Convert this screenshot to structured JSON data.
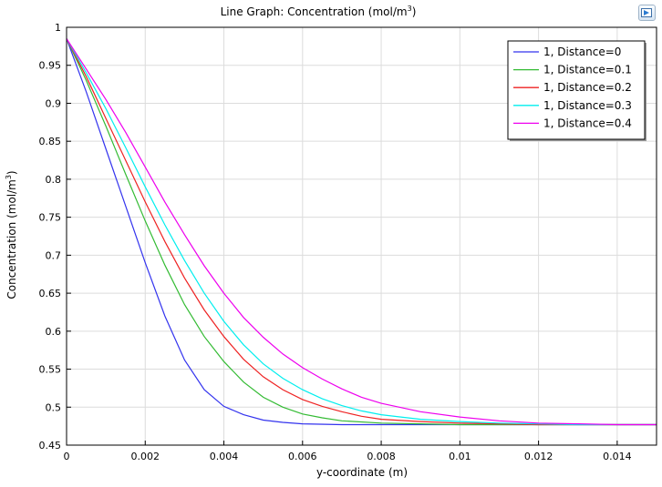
{
  "chart_data": {
    "type": "line",
    "title": "Line Graph: Concentration (mol/m",
    "title_superscript": "3",
    "title_suffix": ")",
    "xlabel": "y-coordinate (m)",
    "ylabel": "Concentration (mol/m",
    "ylabel_superscript": "3",
    "ylabel_suffix": ")",
    "xlim": [
      0,
      0.015
    ],
    "ylim": [
      0.45,
      1.0
    ],
    "xticks": [
      "0",
      "0.002",
      "0.004",
      "0.006",
      "0.008",
      "0.01",
      "0.012",
      "0.014"
    ],
    "xtick_values": [
      0,
      0.002,
      0.004,
      0.006,
      0.008,
      0.01,
      0.012,
      0.014
    ],
    "yticks": [
      "0.45",
      "0.5",
      "0.55",
      "0.6",
      "0.65",
      "0.7",
      "0.75",
      "0.8",
      "0.85",
      "0.9",
      "0.95",
      "1"
    ],
    "ytick_values": [
      0.45,
      0.5,
      0.55,
      0.6,
      0.65,
      0.7,
      0.75,
      0.8,
      0.85,
      0.9,
      0.95,
      1.0
    ],
    "grid": true,
    "legend_position": "top-right",
    "series": [
      {
        "name": "1, Distance=0",
        "color": "#3333ee",
        "points": [
          [
            0,
            0.985
          ],
          [
            0.0005,
            0.915
          ],
          [
            0.001,
            0.84
          ],
          [
            0.0015,
            0.765
          ],
          [
            0.002,
            0.69
          ],
          [
            0.0025,
            0.62
          ],
          [
            0.003,
            0.562
          ],
          [
            0.0035,
            0.523
          ],
          [
            0.004,
            0.501
          ],
          [
            0.0045,
            0.49
          ],
          [
            0.005,
            0.483
          ],
          [
            0.0055,
            0.48
          ],
          [
            0.006,
            0.478
          ],
          [
            0.007,
            0.477
          ],
          [
            0.008,
            0.477
          ],
          [
            0.01,
            0.477
          ],
          [
            0.012,
            0.477
          ],
          [
            0.015,
            0.477
          ]
        ]
      },
      {
        "name": "1, Distance=0.1",
        "color": "#33bb33",
        "points": [
          [
            0,
            0.985
          ],
          [
            0.0005,
            0.93
          ],
          [
            0.001,
            0.87
          ],
          [
            0.0015,
            0.807
          ],
          [
            0.002,
            0.745
          ],
          [
            0.0025,
            0.687
          ],
          [
            0.003,
            0.635
          ],
          [
            0.0035,
            0.593
          ],
          [
            0.004,
            0.56
          ],
          [
            0.0045,
            0.533
          ],
          [
            0.005,
            0.513
          ],
          [
            0.0055,
            0.5
          ],
          [
            0.006,
            0.491
          ],
          [
            0.0065,
            0.486
          ],
          [
            0.007,
            0.482
          ],
          [
            0.008,
            0.479
          ],
          [
            0.009,
            0.478
          ],
          [
            0.01,
            0.477
          ],
          [
            0.012,
            0.477
          ],
          [
            0.015,
            0.477
          ]
        ]
      },
      {
        "name": "1, Distance=0.2",
        "color": "#ee2222",
        "points": [
          [
            0,
            0.985
          ],
          [
            0.0005,
            0.935
          ],
          [
            0.001,
            0.88
          ],
          [
            0.0015,
            0.825
          ],
          [
            0.002,
            0.77
          ],
          [
            0.0025,
            0.718
          ],
          [
            0.003,
            0.67
          ],
          [
            0.0035,
            0.628
          ],
          [
            0.004,
            0.593
          ],
          [
            0.0045,
            0.563
          ],
          [
            0.005,
            0.54
          ],
          [
            0.0055,
            0.523
          ],
          [
            0.006,
            0.51
          ],
          [
            0.0065,
            0.501
          ],
          [
            0.007,
            0.494
          ],
          [
            0.0075,
            0.488
          ],
          [
            0.008,
            0.484
          ],
          [
            0.009,
            0.481
          ],
          [
            0.01,
            0.479
          ],
          [
            0.011,
            0.478
          ],
          [
            0.012,
            0.477
          ],
          [
            0.015,
            0.477
          ]
        ]
      },
      {
        "name": "1, Distance=0.3",
        "color": "#00eeee",
        "points": [
          [
            0,
            0.985
          ],
          [
            0.0005,
            0.94
          ],
          [
            0.001,
            0.893
          ],
          [
            0.0015,
            0.842
          ],
          [
            0.002,
            0.79
          ],
          [
            0.0025,
            0.74
          ],
          [
            0.003,
            0.693
          ],
          [
            0.0035,
            0.65
          ],
          [
            0.004,
            0.613
          ],
          [
            0.0045,
            0.582
          ],
          [
            0.005,
            0.557
          ],
          [
            0.0055,
            0.538
          ],
          [
            0.006,
            0.523
          ],
          [
            0.0065,
            0.511
          ],
          [
            0.007,
            0.502
          ],
          [
            0.0075,
            0.495
          ],
          [
            0.008,
            0.49
          ],
          [
            0.009,
            0.484
          ],
          [
            0.01,
            0.481
          ],
          [
            0.011,
            0.479
          ],
          [
            0.012,
            0.478
          ],
          [
            0.013,
            0.477
          ],
          [
            0.015,
            0.477
          ]
        ]
      },
      {
        "name": "1, Distance=0.4",
        "color": "#ee00ee",
        "points": [
          [
            0,
            0.985
          ],
          [
            0.0005,
            0.945
          ],
          [
            0.001,
            0.905
          ],
          [
            0.0015,
            0.862
          ],
          [
            0.002,
            0.816
          ],
          [
            0.0025,
            0.77
          ],
          [
            0.003,
            0.727
          ],
          [
            0.0035,
            0.686
          ],
          [
            0.004,
            0.65
          ],
          [
            0.0045,
            0.618
          ],
          [
            0.005,
            0.592
          ],
          [
            0.0055,
            0.57
          ],
          [
            0.006,
            0.552
          ],
          [
            0.0065,
            0.537
          ],
          [
            0.007,
            0.524
          ],
          [
            0.0075,
            0.513
          ],
          [
            0.008,
            0.505
          ],
          [
            0.009,
            0.494
          ],
          [
            0.01,
            0.487
          ],
          [
            0.011,
            0.482
          ],
          [
            0.012,
            0.479
          ],
          [
            0.013,
            0.478
          ],
          [
            0.014,
            0.477
          ],
          [
            0.015,
            0.477
          ]
        ]
      }
    ]
  }
}
